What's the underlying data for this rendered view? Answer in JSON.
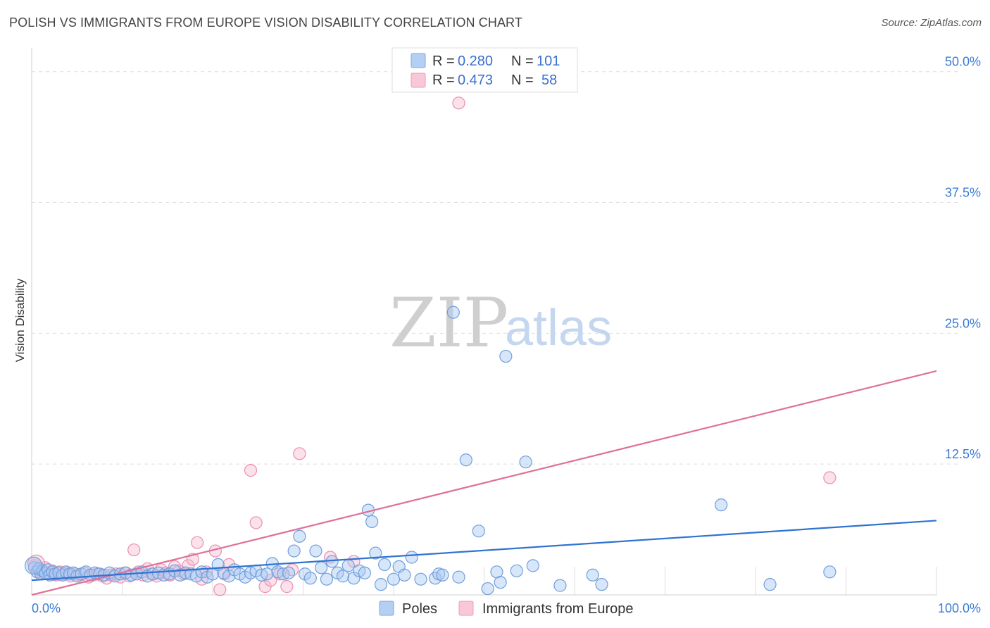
{
  "header": {
    "title": "POLISH VS IMMIGRANTS FROM EUROPE VISION DISABILITY CORRELATION CHART",
    "source": "Source: ZipAtlas.com"
  },
  "watermark": {
    "zip": "ZIP",
    "atlas": "atlas"
  },
  "legend": {
    "rows": [
      {
        "r_label": "R =",
        "r_value": "0.280",
        "n_label": "N =",
        "n_value": "101"
      },
      {
        "r_label": "R =",
        "r_value": "0.473",
        "n_label": "N =",
        "n_value": "58"
      }
    ]
  },
  "bottom_legend": {
    "poles": "Poles",
    "immigrants": "Immigrants from Europe"
  },
  "colors": {
    "poles_fill": "#a9c8f2",
    "poles_stroke": "#6f9fdc",
    "poles_line": "#2f74d0",
    "imm_fill": "#f6bcd0",
    "imm_stroke": "#ea8fb0",
    "imm_line": "#e07099",
    "tick": "#3a7bd5",
    "grid": "#dddddd"
  },
  "chart_data": {
    "type": "scatter",
    "title": "POLISH VS IMMIGRANTS FROM EUROPE VISION DISABILITY CORRELATION CHART",
    "xlabel": "",
    "ylabel": "Vision Disability",
    "xlim": [
      0,
      100
    ],
    "ylim": [
      0,
      52
    ],
    "x_tick_labels": [
      "0.0%",
      "100.0%"
    ],
    "y_ticks": [
      12.5,
      25.0,
      37.5,
      50.0
    ],
    "y_tick_labels": [
      "12.5%",
      "25.0%",
      "37.5%",
      "50.0%"
    ],
    "grid": true,
    "series": [
      {
        "name": "Poles",
        "r": 0.28,
        "n": 101,
        "trend": [
          [
            0,
            1.4
          ],
          [
            100,
            7.1
          ]
        ],
        "points": [
          [
            0.3,
            2.6
          ],
          [
            0.6,
            2.2
          ],
          [
            0.8,
            2.5
          ],
          [
            1.0,
            2.0
          ],
          [
            1.2,
            2.3
          ],
          [
            1.5,
            2.1
          ],
          [
            1.8,
            2.4
          ],
          [
            2.0,
            1.9
          ],
          [
            2.3,
            2.2
          ],
          [
            2.6,
            2.0
          ],
          [
            3.0,
            2.1
          ],
          [
            3.4,
            1.9
          ],
          [
            3.8,
            2.2
          ],
          [
            4.2,
            2.0
          ],
          [
            4.6,
            2.1
          ],
          [
            5.0,
            1.8
          ],
          [
            5.5,
            2.0
          ],
          [
            6.0,
            2.2
          ],
          [
            6.5,
            1.9
          ],
          [
            7.0,
            2.1
          ],
          [
            7.5,
            2.0
          ],
          [
            8.0,
            1.9
          ],
          [
            8.6,
            2.1
          ],
          [
            9.2,
            1.8
          ],
          [
            9.8,
            2.0
          ],
          [
            10.4,
            2.1
          ],
          [
            11.0,
            1.9
          ],
          [
            11.6,
            2.0
          ],
          [
            12.2,
            2.2
          ],
          [
            12.8,
            1.8
          ],
          [
            13.4,
            2.0
          ],
          [
            14.0,
            2.1
          ],
          [
            14.6,
            1.9
          ],
          [
            15.2,
            2.0
          ],
          [
            15.8,
            2.3
          ],
          [
            16.4,
            1.9
          ],
          [
            17.0,
            2.1
          ],
          [
            17.6,
            2.0
          ],
          [
            18.2,
            1.8
          ],
          [
            18.8,
            2.2
          ],
          [
            19.4,
            1.7
          ],
          [
            20.0,
            2.0
          ],
          [
            20.6,
            2.9
          ],
          [
            21.2,
            2.1
          ],
          [
            21.8,
            1.8
          ],
          [
            22.4,
            2.4
          ],
          [
            23.0,
            2.0
          ],
          [
            23.6,
            1.7
          ],
          [
            24.2,
            2.1
          ],
          [
            24.8,
            2.3
          ],
          [
            25.4,
            1.9
          ],
          [
            26.0,
            2.0
          ],
          [
            26.6,
            3.0
          ],
          [
            27.2,
            2.2
          ],
          [
            27.8,
            2.0
          ],
          [
            28.4,
            2.1
          ],
          [
            29.0,
            4.2
          ],
          [
            29.6,
            5.6
          ],
          [
            30.2,
            2.0
          ],
          [
            30.8,
            1.6
          ],
          [
            31.4,
            4.2
          ],
          [
            32.0,
            2.6
          ],
          [
            32.6,
            1.5
          ],
          [
            33.2,
            3.2
          ],
          [
            33.8,
            2.1
          ],
          [
            34.4,
            1.8
          ],
          [
            35.0,
            2.8
          ],
          [
            35.6,
            1.6
          ],
          [
            36.2,
            2.3
          ],
          [
            36.8,
            2.1
          ],
          [
            37.2,
            8.1
          ],
          [
            37.6,
            7.0
          ],
          [
            38.0,
            4.0
          ],
          [
            38.6,
            1.0
          ],
          [
            39.0,
            2.9
          ],
          [
            40.0,
            1.5
          ],
          [
            40.6,
            2.7
          ],
          [
            41.2,
            1.9
          ],
          [
            42.0,
            3.6
          ],
          [
            43.0,
            1.5
          ],
          [
            44.6,
            1.6
          ],
          [
            45.0,
            2.0
          ],
          [
            45.4,
            1.9
          ],
          [
            46.6,
            27.0
          ],
          [
            47.2,
            1.7
          ],
          [
            48.0,
            12.9
          ],
          [
            49.4,
            6.1
          ],
          [
            50.4,
            0.6
          ],
          [
            51.4,
            2.2
          ],
          [
            51.8,
            1.2
          ],
          [
            52.4,
            22.8
          ],
          [
            53.6,
            2.3
          ],
          [
            54.6,
            12.7
          ],
          [
            55.4,
            2.8
          ],
          [
            58.4,
            0.9
          ],
          [
            62.0,
            1.9
          ],
          [
            63.0,
            1.0
          ],
          [
            76.2,
            8.6
          ],
          [
            81.6,
            1.0
          ],
          [
            88.2,
            2.2
          ],
          [
            0.2,
            2.8
          ]
        ]
      },
      {
        "name": "Immigrants from Europe",
        "r": 0.473,
        "n": 58,
        "trend": [
          [
            0,
            0.0
          ],
          [
            100,
            21.4
          ]
        ],
        "points": [
          [
            0.3,
            2.8
          ],
          [
            0.7,
            2.4
          ],
          [
            1.1,
            2.1
          ],
          [
            1.5,
            2.6
          ],
          [
            1.9,
            2.0
          ],
          [
            2.3,
            2.3
          ],
          [
            2.7,
            1.9
          ],
          [
            3.1,
            2.2
          ],
          [
            3.5,
            2.0
          ],
          [
            3.9,
            2.1
          ],
          [
            4.3,
            1.8
          ],
          [
            4.8,
            2.0
          ],
          [
            5.3,
            1.9
          ],
          [
            5.8,
            2.1
          ],
          [
            6.3,
            1.7
          ],
          [
            6.8,
            1.9
          ],
          [
            7.3,
            2.0
          ],
          [
            7.8,
            1.8
          ],
          [
            8.3,
            1.6
          ],
          [
            8.8,
            1.9
          ],
          [
            9.3,
            2.0
          ],
          [
            9.8,
            1.7
          ],
          [
            10.3,
            2.1
          ],
          [
            10.8,
            1.8
          ],
          [
            11.3,
            4.3
          ],
          [
            11.8,
            2.2
          ],
          [
            12.3,
            1.9
          ],
          [
            12.8,
            2.5
          ],
          [
            13.3,
            2.0
          ],
          [
            13.8,
            1.8
          ],
          [
            14.3,
            2.4
          ],
          [
            14.8,
            2.1
          ],
          [
            15.3,
            1.9
          ],
          [
            15.8,
            2.7
          ],
          [
            16.3,
            2.3
          ],
          [
            16.8,
            2.0
          ],
          [
            17.3,
            2.8
          ],
          [
            17.8,
            3.4
          ],
          [
            18.3,
            5.0
          ],
          [
            18.8,
            1.5
          ],
          [
            19.3,
            2.2
          ],
          [
            20.3,
            4.2
          ],
          [
            20.8,
            0.5
          ],
          [
            21.3,
            2.0
          ],
          [
            21.8,
            2.9
          ],
          [
            24.2,
            11.9
          ],
          [
            24.8,
            6.9
          ],
          [
            25.8,
            0.8
          ],
          [
            26.4,
            1.4
          ],
          [
            27.4,
            2.0
          ],
          [
            28.2,
            0.8
          ],
          [
            28.8,
            2.4
          ],
          [
            29.6,
            13.5
          ],
          [
            33.0,
            3.6
          ],
          [
            35.6,
            3.2
          ],
          [
            47.2,
            47.0
          ],
          [
            88.2,
            11.2
          ],
          [
            0.5,
            3.0
          ]
        ]
      }
    ]
  }
}
